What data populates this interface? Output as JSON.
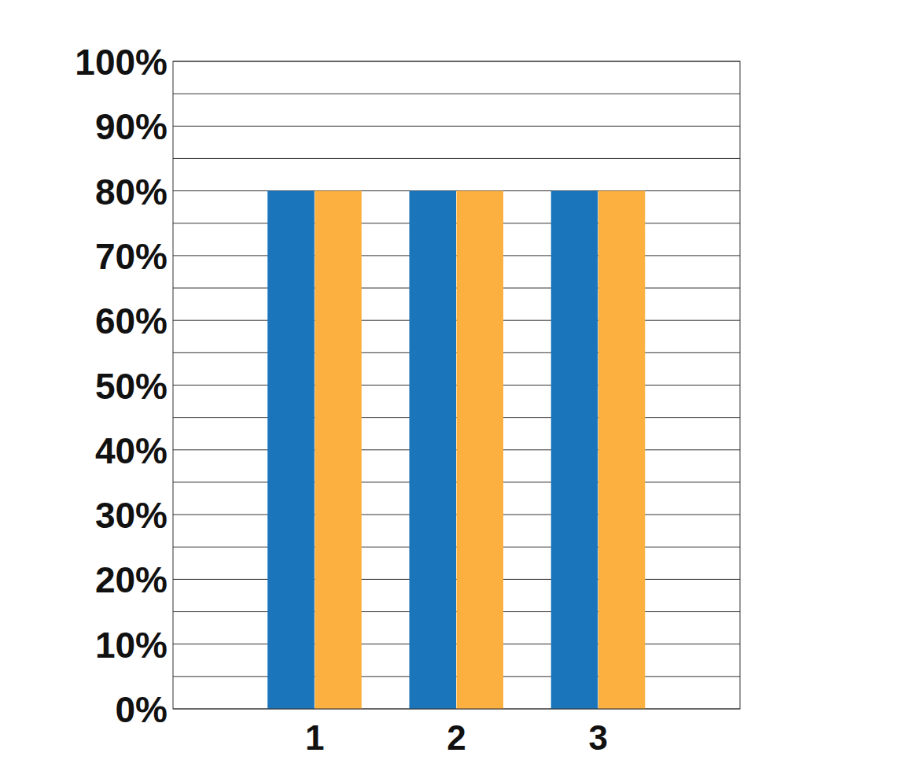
{
  "chart_data": {
    "type": "bar",
    "categories": [
      "1",
      "2",
      "3"
    ],
    "series": [
      {
        "color": "#1b75bb",
        "values": [
          80,
          80,
          80
        ]
      },
      {
        "color": "#fbb040",
        "values": [
          80,
          80,
          80
        ]
      }
    ],
    "ylim": [
      0,
      100
    ],
    "yticks": [
      {
        "value": 0,
        "label": "0%"
      },
      {
        "value": 10,
        "label": "10%"
      },
      {
        "value": 20,
        "label": "20%"
      },
      {
        "value": 30,
        "label": "30%"
      },
      {
        "value": 40,
        "label": "40%"
      },
      {
        "value": 50,
        "label": "50%"
      },
      {
        "value": 60,
        "label": "60%"
      },
      {
        "value": 70,
        "label": "70%"
      },
      {
        "value": 80,
        "label": "80%"
      },
      {
        "value": 90,
        "label": "90%"
      },
      {
        "value": 100,
        "label": "100%"
      }
    ],
    "grid": true
  }
}
